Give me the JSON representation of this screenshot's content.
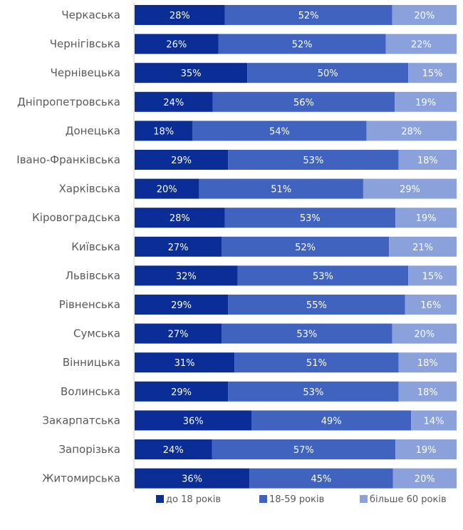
{
  "chart_data": {
    "type": "bar",
    "orientation": "horizontal",
    "stacked": true,
    "categories": [
      "Черкаська",
      "Чернігівська",
      "Чернівецька",
      "Дніпропетровська",
      "Донецька",
      "Івано-Франківська",
      "Харківська",
      "Кіровоградська",
      "Київська",
      "Львівська",
      "Рівненська",
      "Сумська",
      "Вінницька",
      "Волинська",
      "Закарпатська",
      "Запорізька",
      "Житомирська"
    ],
    "series": [
      {
        "name": "до 18 років",
        "color": "#0a2e96",
        "values": [
          28,
          26,
          35,
          24,
          18,
          29,
          20,
          28,
          27,
          32,
          29,
          27,
          31,
          29,
          36,
          24,
          36
        ]
      },
      {
        "name": "18-59 років",
        "color": "#3f63bf",
        "values": [
          52,
          52,
          50,
          56,
          54,
          53,
          51,
          53,
          52,
          53,
          55,
          53,
          51,
          53,
          49,
          57,
          45
        ]
      },
      {
        "name": "більше 60 років",
        "color": "#8aa1db",
        "values": [
          20,
          22,
          15,
          19,
          28,
          18,
          29,
          19,
          21,
          15,
          16,
          20,
          18,
          18,
          14,
          19,
          20
        ]
      }
    ],
    "value_suffix": "%",
    "legend_position": "bottom",
    "grid": false
  }
}
